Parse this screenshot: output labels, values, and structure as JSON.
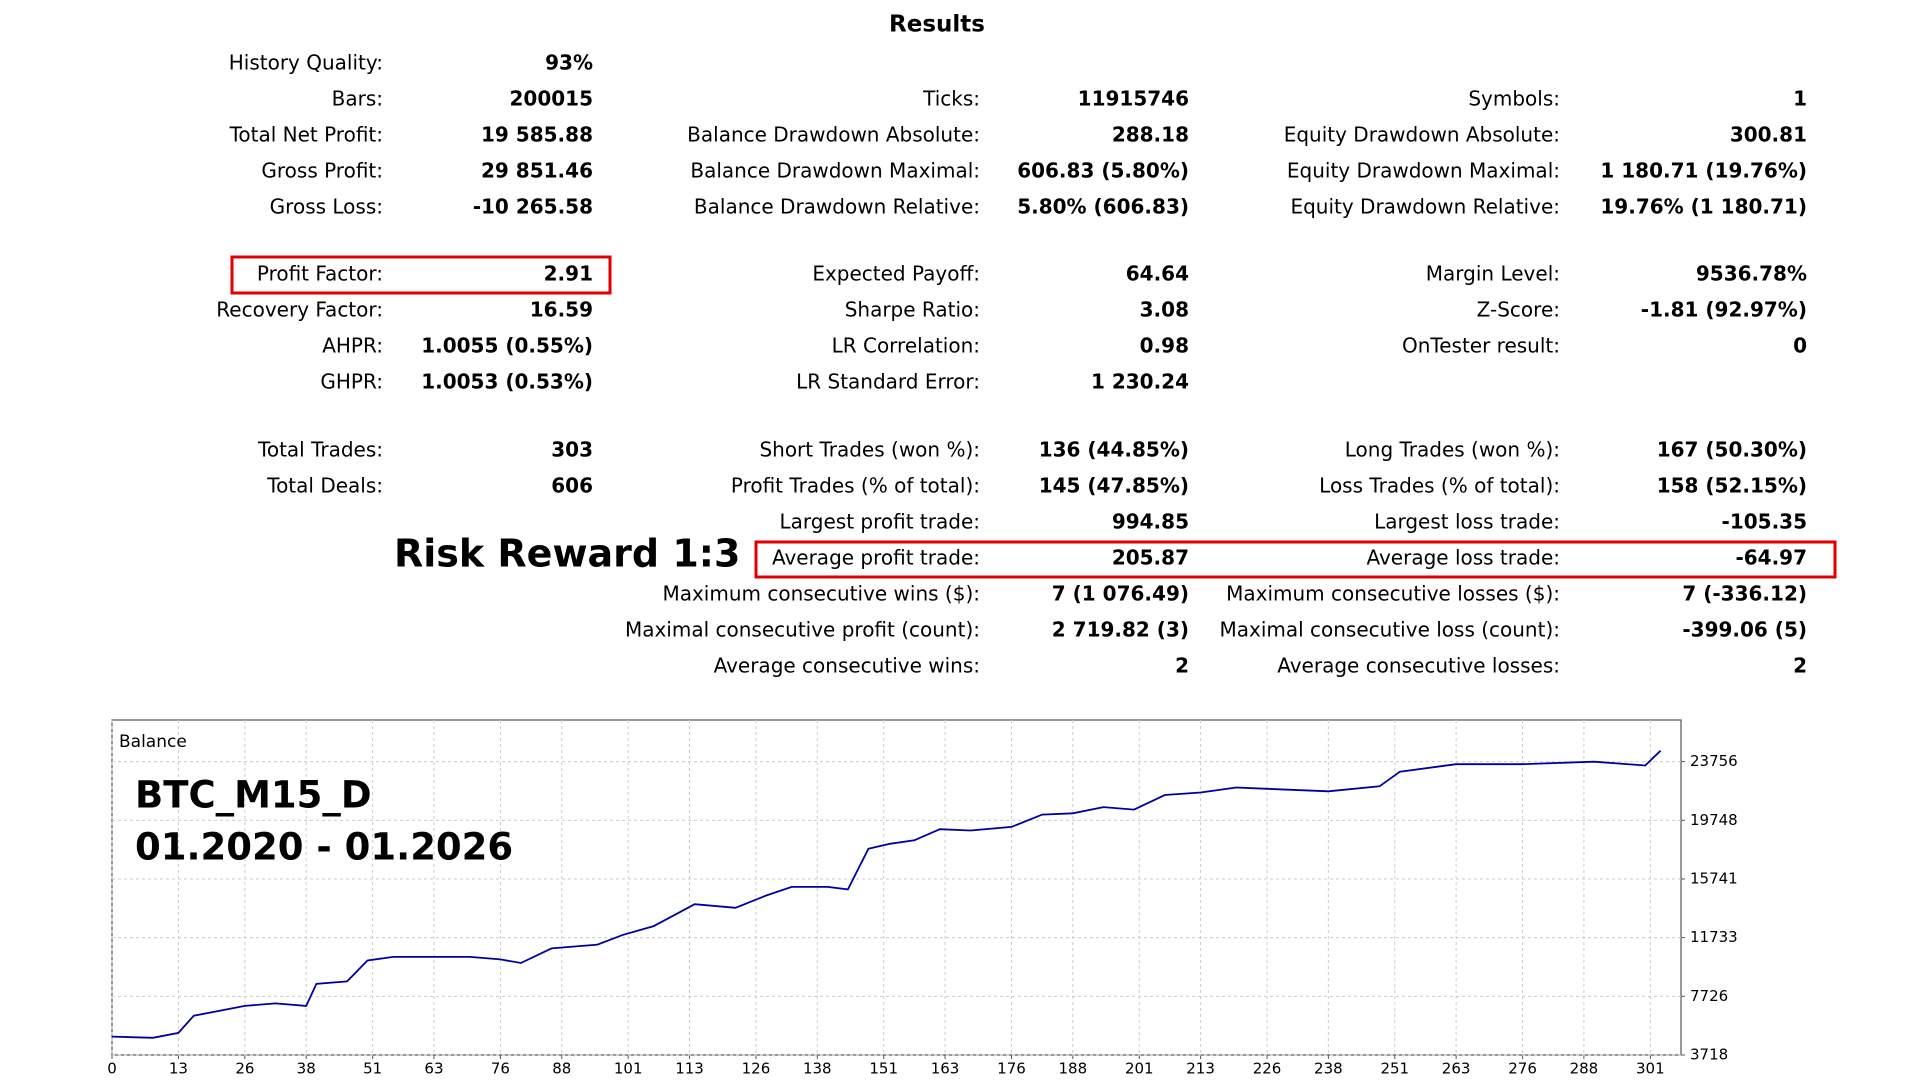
{
  "title": "Results",
  "sections": [
    {
      "columns": [
        [
          {
            "label": "History Quality:",
            "value": "93%"
          },
          {
            "label": "Bars:",
            "value": "200015"
          },
          {
            "label": "Total Net Profit:",
            "value": "19 585.88"
          },
          {
            "label": "Gross Profit:",
            "value": "29 851.46"
          },
          {
            "label": "Gross Loss:",
            "value": "-10 265.58"
          }
        ],
        [
          null,
          {
            "label": "Ticks:",
            "value": "11915746"
          },
          {
            "label": "Balance Drawdown Absolute:",
            "value": "288.18"
          },
          {
            "label": "Balance Drawdown Maximal:",
            "value": "606.83 (5.80%)"
          },
          {
            "label": "Balance Drawdown Relative:",
            "value": "5.80% (606.83)"
          }
        ],
        [
          null,
          {
            "label": "Symbols:",
            "value": "1"
          },
          {
            "label": "Equity Drawdown Absolute:",
            "value": "300.81"
          },
          {
            "label": "Equity Drawdown Maximal:",
            "value": "1 180.71 (19.76%)"
          },
          {
            "label": "Equity Drawdown Relative:",
            "value": "19.76% (1 180.71)"
          }
        ]
      ]
    },
    {
      "columns": [
        [
          {
            "label": "Profit Factor:",
            "value": "2.91"
          },
          {
            "label": "Recovery Factor:",
            "value": "16.59"
          },
          {
            "label": "AHPR:",
            "value": "1.0055 (0.55%)"
          },
          {
            "label": "GHPR:",
            "value": "1.0053 (0.53%)"
          }
        ],
        [
          {
            "label": "Expected Payoff:",
            "value": "64.64"
          },
          {
            "label": "Sharpe Ratio:",
            "value": "3.08"
          },
          {
            "label": "LR Correlation:",
            "value": "0.98"
          },
          {
            "label": "LR Standard Error:",
            "value": "1 230.24"
          }
        ],
        [
          {
            "label": "Margin Level:",
            "value": "9536.78%"
          },
          {
            "label": "Z-Score:",
            "value": "-1.81 (92.97%)"
          },
          {
            "label": "OnTester result:",
            "value": "0"
          }
        ]
      ]
    },
    {
      "columns": [
        [
          {
            "label": "Total Trades:",
            "value": "303"
          },
          {
            "label": "Total Deals:",
            "value": "606"
          }
        ],
        [
          {
            "label": "Short Trades (won %):",
            "value": "136 (44.85%)"
          },
          {
            "label": "Profit Trades (% of total):",
            "value": "145 (47.85%)"
          },
          {
            "label": "Largest profit trade:",
            "value": "994.85"
          },
          {
            "label": "Average profit trade:",
            "value": "205.87"
          },
          {
            "label": "Maximum consecutive wins ($):",
            "value": "7 (1 076.49)"
          },
          {
            "label": "Maximal consecutive profit (count):",
            "value": "2 719.82 (3)"
          },
          {
            "label": "Average consecutive wins:",
            "value": "2"
          }
        ],
        [
          {
            "label": "Long Trades (won %):",
            "value": "167 (50.30%)"
          },
          {
            "label": "Loss Trades (% of total):",
            "value": "158 (52.15%)"
          },
          {
            "label": "Largest loss trade:",
            "value": "-105.35"
          },
          {
            "label": "Average loss trade:",
            "value": "-64.97"
          },
          {
            "label": "Maximum consecutive losses ($):",
            "value": "7 (-336.12)"
          },
          {
            "label": "Maximal consecutive loss (count):",
            "value": "-399.06 (5)"
          },
          {
            "label": "Average consecutive losses:",
            "value": "2"
          }
        ]
      ]
    }
  ],
  "annotation": "Risk Reward 1:3",
  "chart_data": {
    "type": "line",
    "title": "Balance",
    "annotations": [
      "BTC_M15_D",
      "01.2020 - 01.2026"
    ],
    "x": [
      0,
      8,
      13,
      16,
      26,
      32,
      38,
      40,
      46,
      50,
      55,
      70,
      76,
      80,
      86,
      95,
      100,
      106,
      110,
      114,
      122,
      128,
      133,
      140,
      144,
      148,
      152,
      157,
      162,
      168,
      176,
      182,
      188,
      194,
      200,
      206,
      213,
      220,
      226,
      238,
      248,
      252,
      263,
      276,
      290,
      300,
      303
    ],
    "values": [
      4975,
      4890,
      5226,
      6400,
      7070,
      7240,
      7070,
      8580,
      8746,
      10170,
      10420,
      10420,
      10250,
      10000,
      11000,
      11260,
      11930,
      12520,
      13270,
      14020,
      13770,
      14610,
      15200,
      15200,
      15030,
      17800,
      18130,
      18380,
      19140,
      19050,
      19300,
      20140,
      20230,
      20650,
      20480,
      21480,
      21650,
      21990,
      21900,
      21730,
      22070,
      23070,
      23580,
      23580,
      23750,
      23490,
      24500
    ],
    "color": "#0000a0",
    "xlim": [
      0,
      307
    ],
    "xticks": [
      0,
      13,
      26,
      38,
      51,
      63,
      76,
      88,
      101,
      113,
      126,
      138,
      151,
      163,
      176,
      188,
      201,
      213,
      226,
      238,
      251,
      263,
      276,
      288,
      301
    ],
    "ylim": [
      3718,
      26600
    ],
    "yticks": [
      3718,
      7726,
      11733,
      15741,
      19748,
      23756
    ],
    "grid": true
  }
}
